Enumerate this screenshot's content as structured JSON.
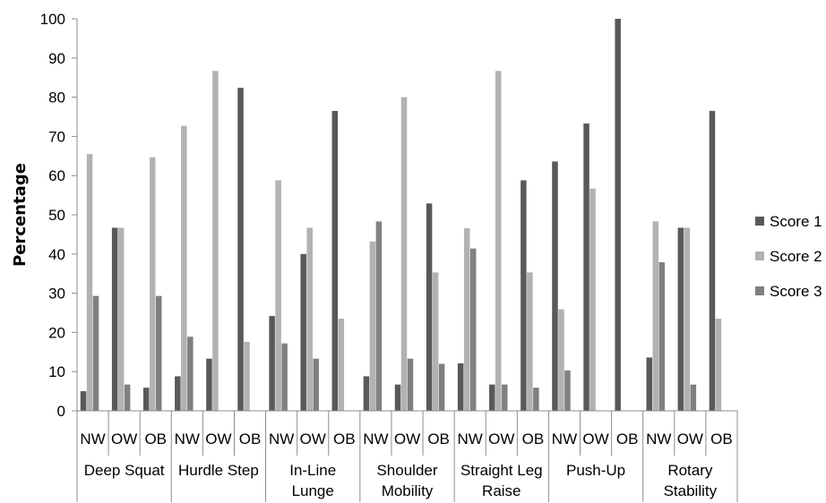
{
  "chart_data": {
    "type": "bar",
    "ylabel": "Percentage",
    "ylim": [
      0,
      100
    ],
    "yticks": [
      "0",
      "10",
      "20",
      "30",
      "40",
      "50",
      "60",
      "70",
      "80",
      "90",
      "100"
    ],
    "grid": false,
    "legend_position": "right",
    "groups": [
      {
        "label_lines": [
          "Deep Squat"
        ],
        "subcategories": [
          "NW",
          "OW",
          "OB"
        ]
      },
      {
        "label_lines": [
          "Hurdle Step"
        ],
        "subcategories": [
          "NW",
          "OW",
          "OB"
        ]
      },
      {
        "label_lines": [
          "In-Line",
          "Lunge"
        ],
        "subcategories": [
          "NW",
          "OW",
          "OB"
        ]
      },
      {
        "label_lines": [
          "Shoulder",
          "Mobility"
        ],
        "subcategories": [
          "NW",
          "OW",
          "OB"
        ]
      },
      {
        "label_lines": [
          "Straight Leg",
          "Raise"
        ],
        "subcategories": [
          "NW",
          "OW",
          "OB"
        ]
      },
      {
        "label_lines": [
          "Push-Up"
        ],
        "subcategories": [
          "NW",
          "OW",
          "OB"
        ]
      },
      {
        "label_lines": [
          "Rotary",
          "Stability"
        ],
        "subcategories": [
          "NW",
          "OW",
          "OB"
        ]
      }
    ],
    "series": [
      {
        "name": "Score 1",
        "color": "#595959",
        "values": [
          5,
          46.7,
          5.9,
          8.8,
          13.3,
          82.4,
          24.2,
          40,
          76.5,
          8.8,
          6.7,
          52.9,
          12.1,
          6.7,
          58.8,
          63.6,
          73.3,
          100,
          13.6,
          46.7,
          76.5
        ]
      },
      {
        "name": "Score 2",
        "color": "#b2b2b2",
        "values": [
          65.5,
          46.7,
          64.7,
          72.7,
          86.7,
          17.6,
          58.8,
          46.7,
          23.5,
          43.2,
          80,
          35.3,
          46.6,
          86.7,
          35.3,
          25.9,
          56.7,
          0,
          48.3,
          46.7,
          23.5
        ]
      },
      {
        "name": "Score 3",
        "color": "#808080",
        "values": [
          29.3,
          6.7,
          29.3,
          18.9,
          0,
          0,
          17.2,
          13.3,
          0,
          48.3,
          13.3,
          12,
          41.4,
          6.7,
          5.9,
          10.3,
          0,
          0,
          37.9,
          6.7,
          0
        ]
      }
    ]
  }
}
